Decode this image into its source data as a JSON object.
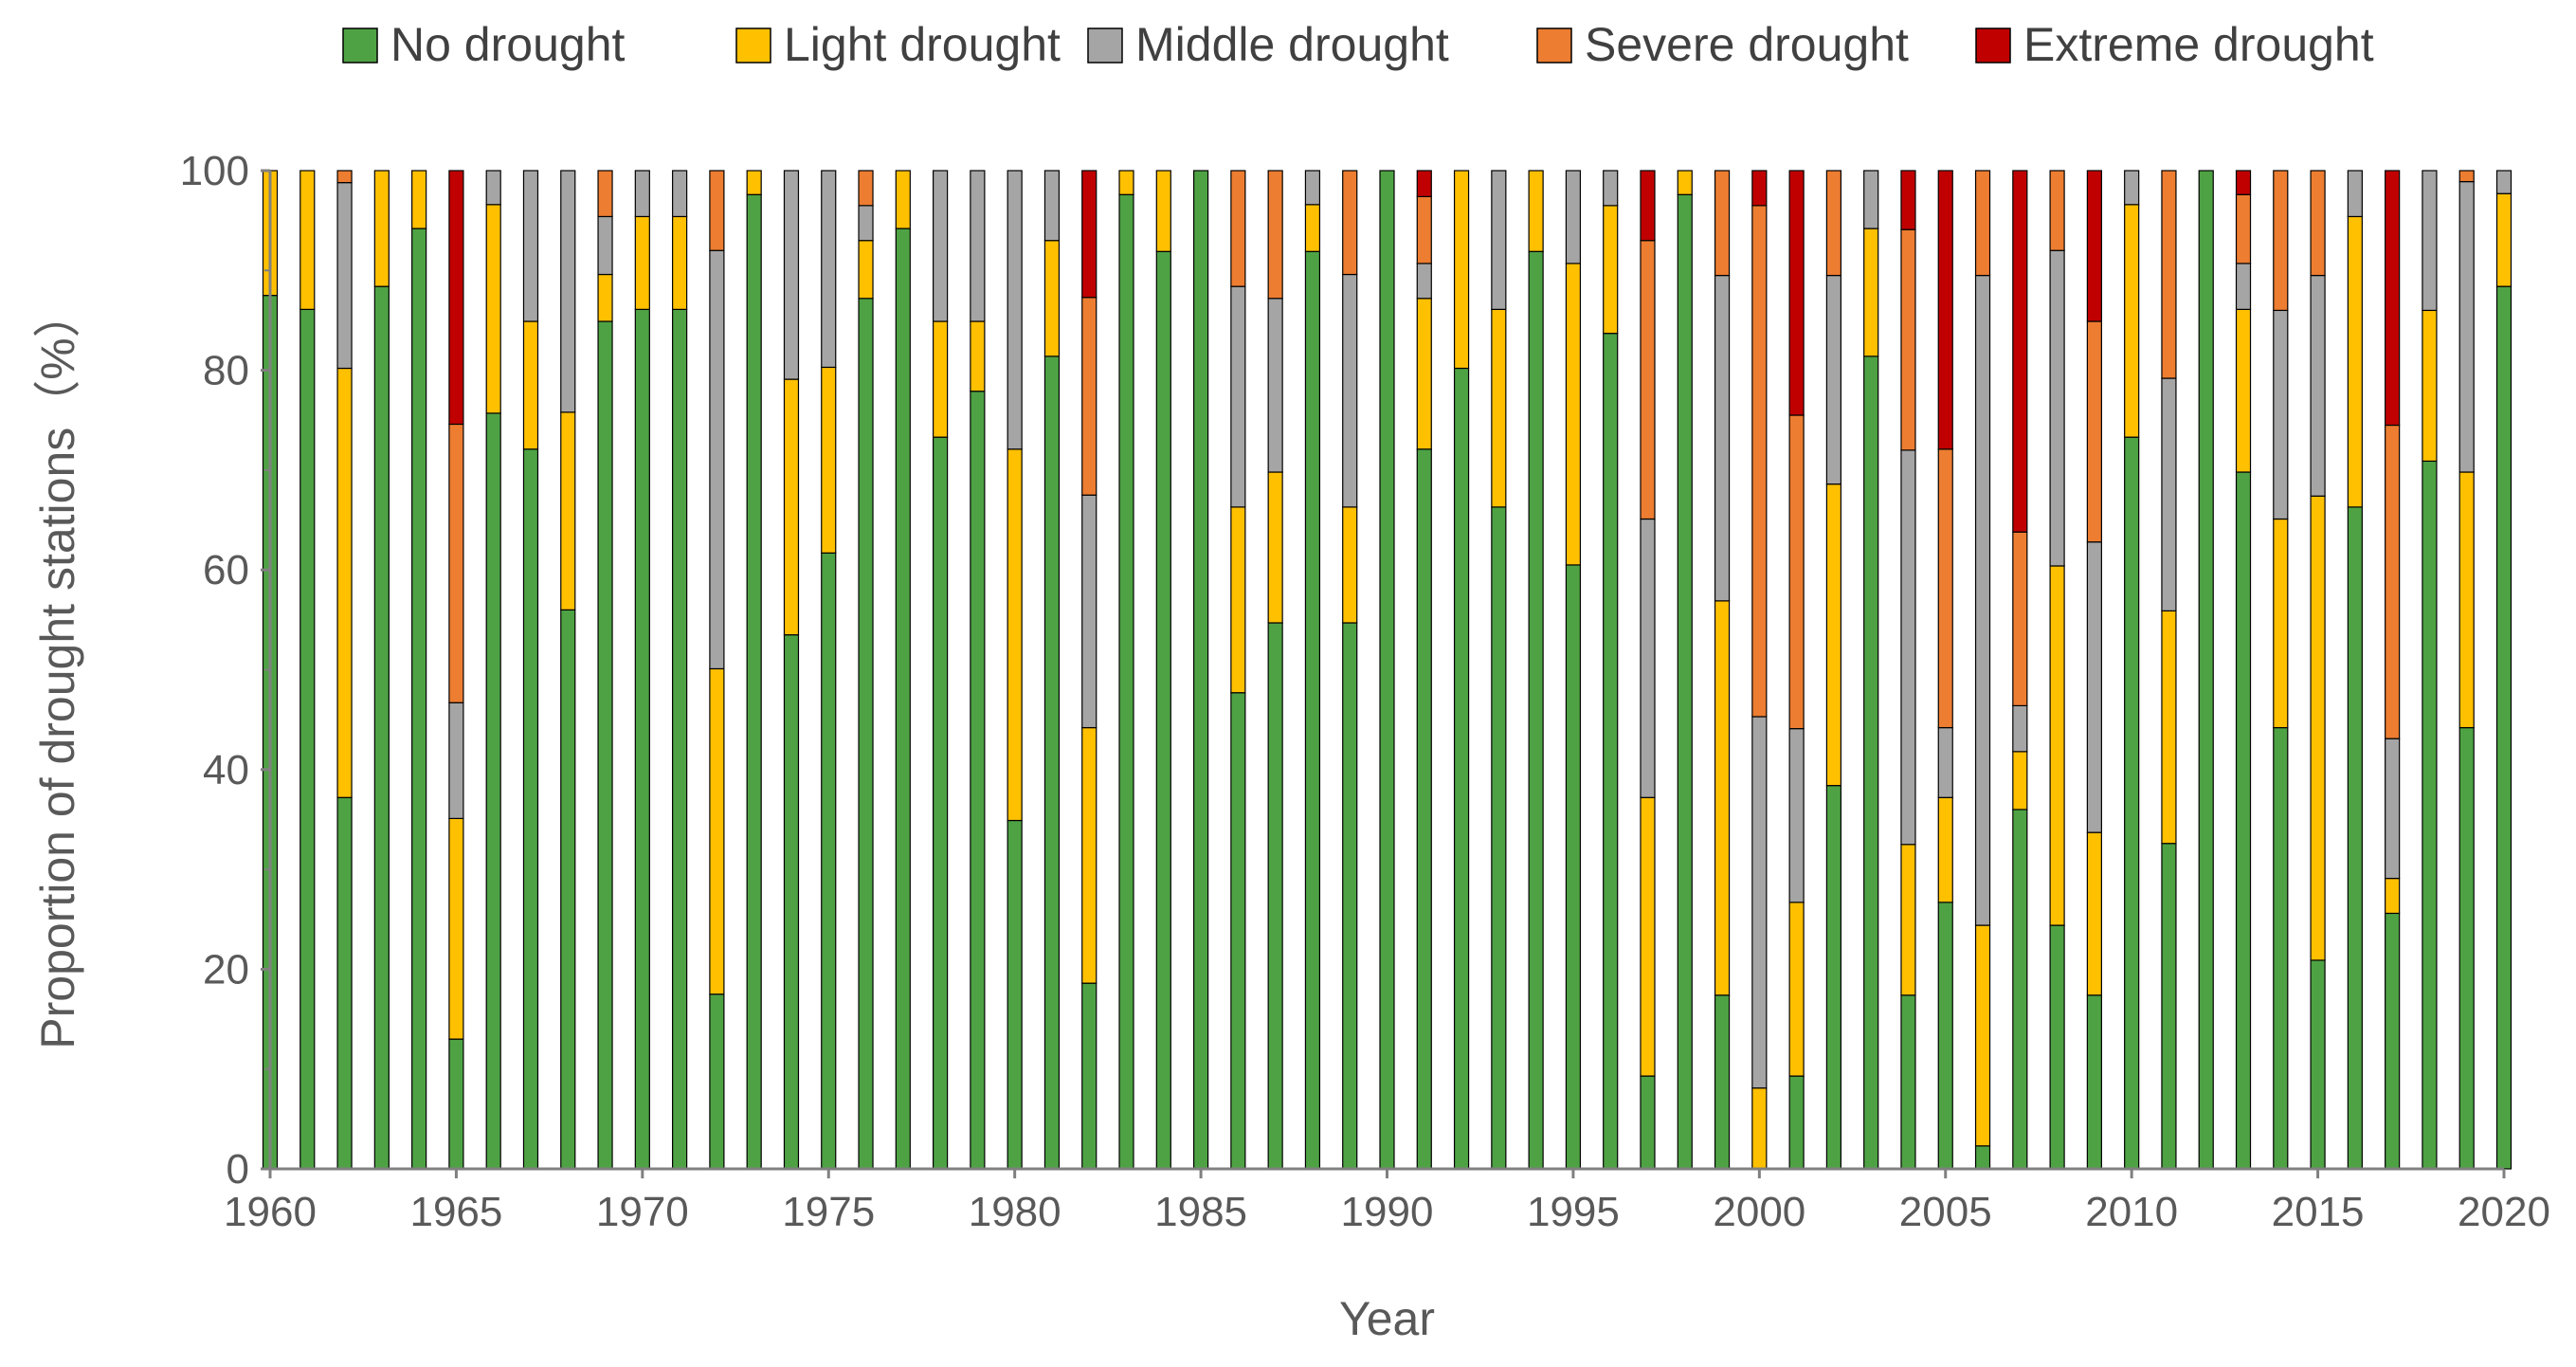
{
  "chart_data": {
    "type": "bar",
    "stacked": true,
    "title": "",
    "xlabel": "Year",
    "ylabel": "Proportion of drought stations（%）",
    "ylim": [
      0,
      100
    ],
    "yticks": [
      "0",
      "20",
      "40",
      "60",
      "80",
      "100"
    ],
    "xticks": [
      "1960",
      "1965",
      "1970",
      "1975",
      "1980",
      "1985",
      "1990",
      "1995",
      "2000",
      "2005",
      "2010",
      "2015",
      "2020"
    ],
    "legend_position": "top",
    "categories": [
      1960,
      1961,
      1962,
      1963,
      1964,
      1965,
      1966,
      1967,
      1968,
      1969,
      1970,
      1971,
      1972,
      1973,
      1974,
      1975,
      1976,
      1977,
      1978,
      1979,
      1980,
      1981,
      1982,
      1983,
      1984,
      1985,
      1986,
      1987,
      1988,
      1989,
      1990,
      1991,
      1992,
      1993,
      1994,
      1995,
      1996,
      1997,
      1998,
      1999,
      2000,
      2001,
      2002,
      2003,
      2004,
      2005,
      2006,
      2007,
      2008,
      2009,
      2010,
      2011,
      2012,
      2013,
      2014,
      2015,
      2016,
      2017,
      2018,
      2019,
      2020
    ],
    "series": [
      {
        "name": "No drought",
        "color": "#4ea244",
        "values": [
          87.5,
          86.1,
          37.2,
          88.4,
          94.2,
          13.0,
          75.7,
          72.1,
          56.0,
          84.9,
          86.1,
          86.1,
          17.5,
          97.6,
          53.5,
          61.7,
          87.2,
          94.2,
          73.3,
          77.9,
          34.9,
          81.4,
          18.6,
          97.6,
          91.9,
          100,
          47.7,
          54.7,
          91.9,
          54.7,
          100,
          72.1,
          80.2,
          66.3,
          91.9,
          60.5,
          83.7,
          9.3,
          97.6,
          17.4,
          0,
          9.3,
          38.4,
          81.4,
          17.4,
          26.7,
          2.3,
          36.0,
          24.4,
          17.4,
          73.3,
          32.6,
          100,
          69.8,
          44.2,
          20.9,
          66.3,
          25.6,
          70.9,
          44.2,
          88.4
        ]
      },
      {
        "name": "Light drought",
        "color": "#ffc000",
        "values": [
          12.5,
          13.9,
          43.0,
          11.6,
          5.8,
          22.1,
          20.9,
          12.8,
          19.8,
          4.7,
          9.3,
          9.3,
          32.6,
          2.4,
          25.6,
          18.6,
          5.8,
          5.8,
          11.6,
          7.0,
          37.2,
          11.6,
          25.6,
          2.4,
          8.1,
          0,
          18.6,
          15.1,
          4.7,
          11.6,
          0,
          15.1,
          19.8,
          19.8,
          8.1,
          30.2,
          12.8,
          27.9,
          2.4,
          39.5,
          8.1,
          17.4,
          30.2,
          12.8,
          15.1,
          10.5,
          22.1,
          5.8,
          36.0,
          16.3,
          23.3,
          23.3,
          0,
          16.3,
          20.9,
          46.5,
          29.1,
          3.5,
          15.1,
          25.6,
          9.3
        ]
      },
      {
        "name": "Middle drought",
        "color": "#a5a5a5",
        "values": [
          0,
          0,
          18.6,
          0,
          0,
          11.6,
          3.4,
          15.1,
          24.2,
          5.8,
          4.6,
          4.6,
          41.9,
          0,
          20.9,
          19.7,
          3.5,
          0,
          15.1,
          15.1,
          27.9,
          7.0,
          23.3,
          0,
          0,
          0,
          22.1,
          17.4,
          3.4,
          23.3,
          0,
          3.5,
          0,
          13.9,
          0,
          9.3,
          3.5,
          27.9,
          0,
          32.6,
          37.2,
          17.4,
          20.9,
          5.8,
          39.5,
          7.0,
          65.1,
          4.6,
          31.6,
          29.1,
          3.4,
          23.3,
          0,
          4.6,
          20.9,
          22.1,
          4.6,
          14.0,
          14.0,
          29.1,
          2.3
        ]
      },
      {
        "name": "Severe drought",
        "color": "#ed7d31",
        "values": [
          0,
          0,
          1.2,
          0,
          0,
          27.9,
          0,
          0,
          0,
          4.6,
          0,
          0,
          8.0,
          0,
          0,
          0,
          3.5,
          0,
          0,
          0,
          0,
          0,
          19.8,
          0,
          0,
          0,
          11.6,
          12.8,
          0,
          10.4,
          0,
          6.7,
          0,
          0,
          0,
          0,
          0,
          27.9,
          0,
          10.5,
          51.2,
          31.4,
          10.5,
          0,
          22.1,
          27.9,
          10.5,
          17.4,
          8.0,
          22.1,
          0,
          20.8,
          0,
          6.9,
          14.0,
          10.5,
          0,
          31.4,
          0,
          1.1,
          0
        ]
      },
      {
        "name": "Extreme drought",
        "color": "#c00000",
        "values": [
          0,
          0,
          0,
          0,
          0,
          25.4,
          0,
          0,
          0,
          0,
          0,
          0,
          0,
          0,
          0,
          0,
          0,
          0,
          0,
          0,
          0,
          0,
          12.7,
          0,
          0,
          0,
          0,
          0,
          0,
          0,
          0,
          2.6,
          0,
          0,
          0,
          0,
          0,
          7.0,
          0,
          0,
          3.5,
          24.5,
          0,
          0,
          5.9,
          27.9,
          0,
          36.2,
          0,
          15.1,
          0,
          0,
          0,
          2.4,
          0,
          0,
          0,
          25.5,
          0,
          0,
          0
        ]
      }
    ]
  }
}
